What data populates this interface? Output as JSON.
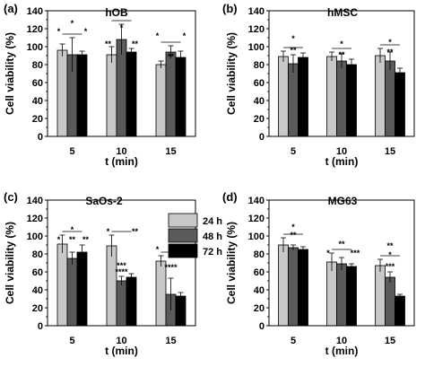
{
  "chart_data": [
    {
      "type": "bar",
      "panel": "(a)",
      "title": "hOB",
      "xlabel": "t (min)",
      "ylabel": "Cell viability (%)",
      "ylim": [
        0,
        140
      ],
      "yticks": [
        0,
        20,
        40,
        60,
        80,
        100,
        120,
        140
      ],
      "categories": [
        "5",
        "10",
        "15"
      ],
      "series": [
        {
          "name": "24 h",
          "color": "#c8c8c8",
          "values": [
            96,
            91,
            80
          ],
          "errors": [
            7,
            9,
            4
          ]
        },
        {
          "name": "48 h",
          "color": "#5a5a5a",
          "values": [
            91,
            108,
            94
          ],
          "errors": [
            19,
            17,
            7
          ]
        },
        {
          "name": "72 h",
          "color": "#000000",
          "values": [
            91,
            94,
            88
          ],
          "errors": [
            4,
            4,
            7
          ]
        }
      ],
      "annotations": [
        {
          "text": "*",
          "group": 0,
          "level": 123
        },
        {
          "text": "*",
          "group": 0,
          "level": 114
        },
        {
          "text": "*",
          "group": 0,
          "level": 114
        },
        {
          "text": "*",
          "group": 1,
          "level": 118
        },
        {
          "text": "**",
          "group": 1,
          "level": 100
        },
        {
          "text": "**",
          "group": 1,
          "level": 100
        },
        {
          "text": "*",
          "group": 2,
          "level": 109
        },
        {
          "text": "**",
          "group": 2,
          "level": 86
        },
        {
          "text": "*",
          "group": 2,
          "level": 109
        }
      ]
    },
    {
      "type": "bar",
      "panel": "(b)",
      "title": "hMSC",
      "xlabel": "t (min)",
      "ylabel": "Cell viability (%)",
      "ylim": [
        0,
        140
      ],
      "yticks": [
        0,
        20,
        40,
        60,
        80,
        100,
        120,
        140
      ],
      "categories": [
        "5",
        "10",
        "15"
      ],
      "series": [
        {
          "name": "24 h",
          "color": "#c8c8c8",
          "values": [
            89,
            89,
            90
          ],
          "errors": [
            6,
            5,
            8
          ]
        },
        {
          "name": "48 h",
          "color": "#5a5a5a",
          "values": [
            81,
            84,
            84
          ],
          "errors": [
            10,
            8,
            10
          ]
        },
        {
          "name": "72 h",
          "color": "#000000",
          "values": [
            88,
            80,
            71
          ],
          "errors": [
            5,
            6,
            5
          ]
        }
      ],
      "annotations": [
        {
          "text": "*",
          "group": 0,
          "level": 106
        },
        {
          "text": "**",
          "group": 0,
          "level": 93
        },
        {
          "text": "*",
          "group": 1,
          "level": 100
        },
        {
          "text": "**",
          "group": 1,
          "level": 88
        },
        {
          "text": "*",
          "group": 2,
          "level": 102
        },
        {
          "text": "**",
          "group": 2,
          "level": 91
        }
      ]
    },
    {
      "type": "bar",
      "panel": "(c)",
      "title": "SaOs-2",
      "xlabel": "t (min)",
      "ylabel": "Cell viability (%)",
      "ylim": [
        0,
        140
      ],
      "yticks": [
        0,
        20,
        40,
        60,
        80,
        100,
        120,
        140
      ],
      "categories": [
        "5",
        "10",
        "15"
      ],
      "series": [
        {
          "name": "24 h",
          "color": "#c8c8c8",
          "values": [
            91,
            89,
            72
          ],
          "errors": [
            10,
            12,
            6
          ]
        },
        {
          "name": "48 h",
          "color": "#5a5a5a",
          "values": [
            75,
            50,
            35
          ],
          "errors": [
            7,
            5,
            18
          ]
        },
        {
          "name": "72 h",
          "color": "#000000",
          "values": [
            82,
            54,
            33
          ],
          "errors": [
            8,
            4,
            4
          ]
        }
      ],
      "annotations": [
        {
          "text": "*",
          "group": 0,
          "level": 104
        },
        {
          "text": "*",
          "group": 0,
          "level": 93
        },
        {
          "text": "**",
          "group": 0,
          "level": 93
        },
        {
          "text": "**",
          "group": 0,
          "level": 93
        },
        {
          "text": "*",
          "group": 1,
          "level": 102
        },
        {
          "text": "**",
          "group": 1,
          "level": 102
        },
        {
          "text": "***",
          "group": 1,
          "level": 64
        },
        {
          "text": "****",
          "group": 1,
          "level": 57
        },
        {
          "text": "*",
          "group": 2,
          "level": 82
        },
        {
          "text": "**",
          "group": 2,
          "level": 82
        },
        {
          "text": "****",
          "group": 2,
          "level": 62
        }
      ]
    },
    {
      "type": "bar",
      "panel": "(d)",
      "title": "MG63",
      "xlabel": "t (min)",
      "ylabel": "Cell viability (%)",
      "ylim": [
        0,
        140
      ],
      "yticks": [
        0,
        20,
        40,
        60,
        80,
        100,
        120,
        140
      ],
      "categories": [
        "5",
        "10",
        "15"
      ],
      "series": [
        {
          "name": "24 h",
          "color": "#c8c8c8",
          "values": [
            90,
            71,
            67
          ],
          "errors": [
            8,
            10,
            7
          ]
        },
        {
          "name": "48 h",
          "color": "#5a5a5a",
          "values": [
            87,
            69,
            54
          ],
          "errors": [
            3,
            7,
            6
          ]
        },
        {
          "name": "72 h",
          "color": "#000000",
          "values": [
            85,
            66,
            33
          ],
          "errors": [
            3,
            3,
            2
          ]
        }
      ],
      "annotations": [
        {
          "text": "*",
          "group": 0,
          "level": 107
        },
        {
          "text": "**",
          "group": 0,
          "level": 98
        },
        {
          "text": "**",
          "group": 1,
          "level": 88
        },
        {
          "text": "*",
          "group": 1,
          "level": 78
        },
        {
          "text": "***",
          "group": 1,
          "level": 78
        },
        {
          "text": "**",
          "group": 2,
          "level": 86
        },
        {
          "text": "*",
          "group": 2,
          "level": 76
        },
        {
          "text": "***",
          "group": 2,
          "level": 63
        }
      ]
    }
  ],
  "legend": {
    "placement": "between-panels",
    "items": [
      {
        "label": "24 h",
        "color": "#c8c8c8"
      },
      {
        "label": "48 h",
        "color": "#5a5a5a"
      },
      {
        "label": "72 h",
        "color": "#000000"
      }
    ]
  }
}
